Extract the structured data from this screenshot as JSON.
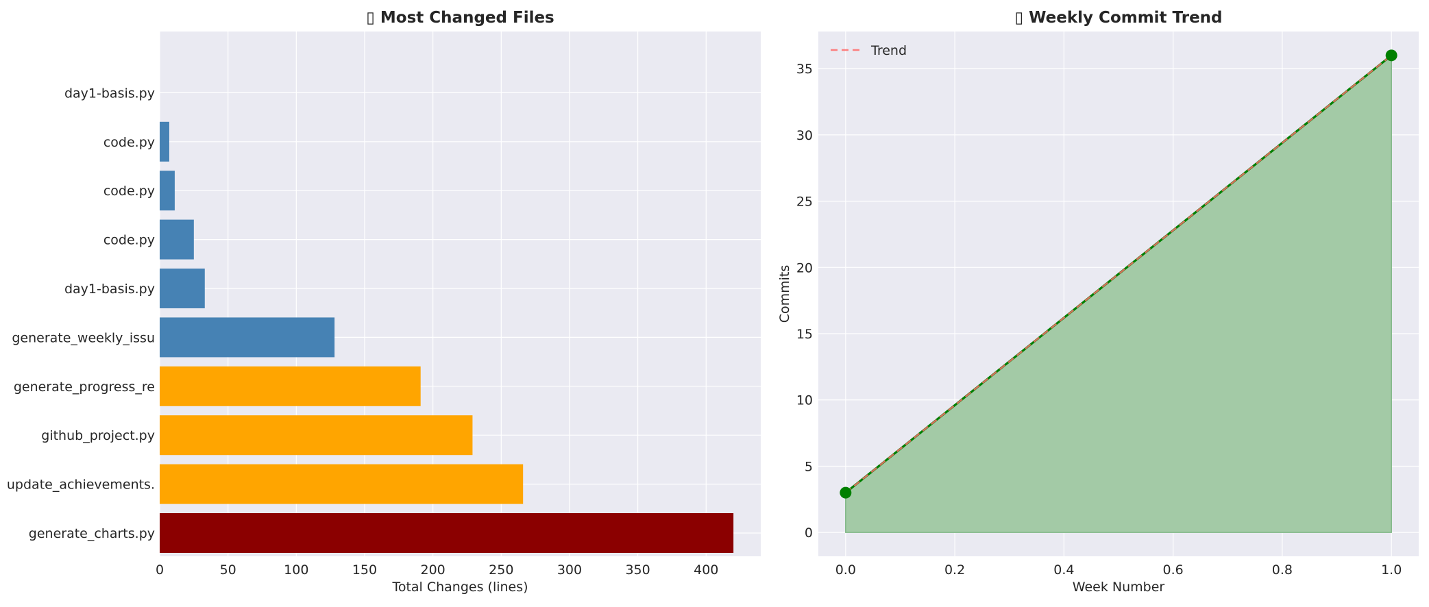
{
  "colors": {
    "plot_bg": "#eaeaf2",
    "grid": "#ffffff",
    "text": "#262626",
    "bar_blue": "#4682b4",
    "bar_orange": "#ffa500",
    "bar_red": "#8b0000",
    "line_green": "#008000",
    "fill_green": "#a3caa6",
    "trend_red": "#ff6b6b"
  },
  "chart_data": [
    {
      "type": "bar",
      "orientation": "horizontal",
      "title": "▯ Most Changed Files",
      "xlabel": "Total Changes (lines)",
      "ylabel": "",
      "xlim": [
        0,
        440
      ],
      "xticks": [
        0,
        50,
        100,
        150,
        200,
        250,
        300,
        350,
        400
      ],
      "grid": true,
      "categories": [
        "generate_charts.py",
        "update_achievements.",
        "github_project.py",
        "generate_progress_re",
        "generate_weekly_issu",
        "day1-basis.py",
        "code.py",
        "code.py",
        "code.py",
        "day1-basis.py"
      ],
      "values": [
        420,
        266,
        229,
        191,
        128,
        33,
        25,
        11,
        7,
        0
      ],
      "bar_colors": [
        "#8b0000",
        "#ffa500",
        "#ffa500",
        "#ffa500",
        "#4682b4",
        "#4682b4",
        "#4682b4",
        "#4682b4",
        "#4682b4",
        "#4682b4"
      ]
    },
    {
      "type": "area",
      "title": "▯ Weekly Commit Trend",
      "xlabel": "Week Number",
      "ylabel": "Commits",
      "xlim": [
        -0.05,
        1.05
      ],
      "ylim": [
        -1.8,
        37.8
      ],
      "xticks": [
        0.0,
        0.2,
        0.4,
        0.6,
        0.8,
        1.0
      ],
      "xtick_labels": [
        "0.0",
        "0.2",
        "0.4",
        "0.6",
        "0.8",
        "1.0"
      ],
      "yticks": [
        0,
        5,
        10,
        15,
        20,
        25,
        30,
        35
      ],
      "grid": true,
      "legend_position": "top-left",
      "x": [
        0,
        1
      ],
      "series": [
        {
          "name": "",
          "values": [
            3,
            36
          ],
          "color": "#008000",
          "style": "solid-markers-filled"
        },
        {
          "name": "Trend",
          "values": [
            3,
            36
          ],
          "color": "#ff6b6b",
          "style": "dashed"
        }
      ]
    }
  ]
}
